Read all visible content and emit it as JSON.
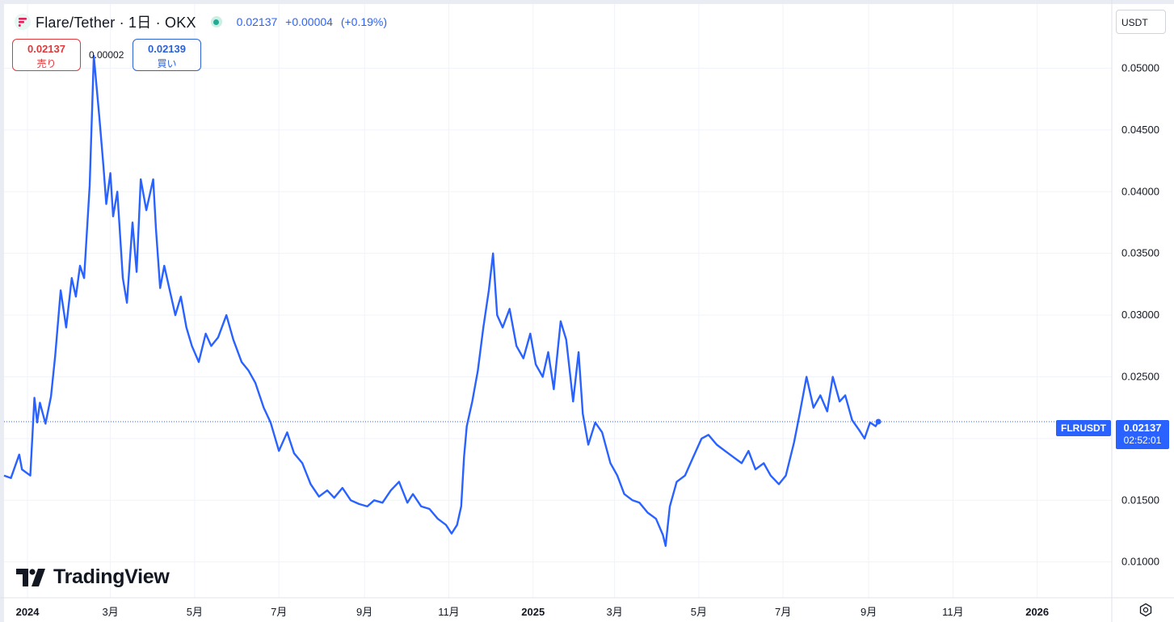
{
  "header": {
    "title": "Flare/Tether · 1日 · OKX",
    "close": "0.02137",
    "change": "+0.00004",
    "change_pct": "(+0.19%)"
  },
  "trade": {
    "sell_price": "0.02137",
    "sell_label": "売り",
    "spread": "0.00002",
    "buy_price": "0.02139",
    "buy_label": "買い"
  },
  "currency_unit": "USDT",
  "watermark": "TradingView",
  "last_price": {
    "symbol": "FLRUSDT",
    "value": "0.02137",
    "countdown": "02:52:01"
  },
  "icons": {
    "logo": "flare-logo-icon",
    "market_status": "market-open-dot-icon",
    "settings": "gear-icon",
    "watermark_logo": "tradingview-logo-icon"
  },
  "colors": {
    "line": "#2962ff",
    "grid": "#f0f3fa",
    "sell": "#e0383b",
    "buy": "#2a62d6",
    "label_bg": "#2962ff"
  },
  "chart_data": {
    "type": "line",
    "y_tick_labels": [
      "0.01000",
      "0.01500",
      "0.02000",
      "0.02500",
      "0.03000",
      "0.03500",
      "0.04000",
      "0.04500",
      "0.05000"
    ],
    "y_ticks": [
      0.01,
      0.015,
      0.02,
      0.025,
      0.03,
      0.035,
      0.04,
      0.045,
      0.05
    ],
    "ylim": [
      0.0071,
      0.0552
    ],
    "x_tick_labels": [
      "2024",
      "3月",
      "5月",
      "7月",
      "9月",
      "11月",
      "2025",
      "3月",
      "5月",
      "7月",
      "9月",
      "11月",
      "2026"
    ],
    "x_ticks": [
      "2024-01-01",
      "2024-03-01",
      "2024-05-01",
      "2024-07-01",
      "2024-09-01",
      "2024-11-01",
      "2025-01-01",
      "2025-03-01",
      "2025-05-01",
      "2025-07-01",
      "2025-09-01",
      "2025-11-01",
      "2026-01-01"
    ],
    "x_bold_ticks": [
      "2024",
      "2025",
      "2026"
    ],
    "xlim": [
      "2023-12-15",
      "2026-02-24"
    ],
    "grid": true,
    "last_value": 0.02137,
    "series": [
      {
        "x": [
          "2023-12-15",
          "2023-12-20",
          "2023-12-26",
          "2023-12-28",
          "2024-01-03",
          "2024-01-06",
          "2024-01-08",
          "2024-01-10",
          "2024-01-14",
          "2024-01-18",
          "2024-01-21",
          "2024-01-25",
          "2024-01-29",
          "2024-02-02",
          "2024-02-05",
          "2024-02-08",
          "2024-02-11",
          "2024-02-15",
          "2024-02-18",
          "2024-02-22",
          "2024-02-25",
          "2024-02-27",
          "2024-03-01",
          "2024-03-03",
          "2024-03-06",
          "2024-03-10",
          "2024-03-13",
          "2024-03-17",
          "2024-03-20",
          "2024-03-23",
          "2024-03-27",
          "2024-04-01",
          "2024-04-03",
          "2024-04-06",
          "2024-04-09",
          "2024-04-13",
          "2024-04-17",
          "2024-04-21",
          "2024-04-25",
          "2024-04-29",
          "2024-05-04",
          "2024-05-09",
          "2024-05-13",
          "2024-05-18",
          "2024-05-24",
          "2024-05-29",
          "2024-06-04",
          "2024-06-09",
          "2024-06-14",
          "2024-06-20",
          "2024-06-25",
          "2024-07-01",
          "2024-07-07",
          "2024-07-12",
          "2024-07-18",
          "2024-07-24",
          "2024-07-30",
          "2024-08-05",
          "2024-08-10",
          "2024-08-16",
          "2024-08-22",
          "2024-08-28",
          "2024-09-03",
          "2024-09-08",
          "2024-09-14",
          "2024-09-20",
          "2024-09-26",
          "2024-10-02",
          "2024-10-06",
          "2024-10-12",
          "2024-10-18",
          "2024-10-24",
          "2024-10-30",
          "2024-11-03",
          "2024-11-07",
          "2024-11-10",
          "2024-11-12",
          "2024-11-14",
          "2024-11-18",
          "2024-11-22",
          "2024-11-26",
          "2024-11-30",
          "2024-12-03",
          "2024-12-06",
          "2024-12-10",
          "2024-12-15",
          "2024-12-20",
          "2024-12-25",
          "2024-12-30",
          "2025-01-03",
          "2025-01-08",
          "2025-01-12",
          "2025-01-16",
          "2025-01-21",
          "2025-01-25",
          "2025-01-30",
          "2025-02-03",
          "2025-02-06",
          "2025-02-10",
          "2025-02-15",
          "2025-02-20",
          "2025-02-26",
          "2025-03-03",
          "2025-03-08",
          "2025-03-14",
          "2025-03-19",
          "2025-03-25",
          "2025-03-31",
          "2025-04-05",
          "2025-04-07",
          "2025-04-10",
          "2025-04-15",
          "2025-04-21",
          "2025-04-27",
          "2025-05-03",
          "2025-05-08",
          "2025-05-14",
          "2025-05-20",
          "2025-05-26",
          "2025-06-01",
          "2025-06-06",
          "2025-06-11",
          "2025-06-17",
          "2025-06-22",
          "2025-06-28",
          "2025-07-03",
          "2025-07-09",
          "2025-07-13",
          "2025-07-18",
          "2025-07-23",
          "2025-07-28",
          "2025-08-02",
          "2025-08-06",
          "2025-08-11",
          "2025-08-15",
          "2025-08-20",
          "2025-08-25",
          "2025-08-29",
          "2025-09-02",
          "2025-09-06",
          "2025-09-08"
        ],
        "y": [
          0.017,
          0.0168,
          0.0187,
          0.0175,
          0.017,
          0.0233,
          0.0213,
          0.0229,
          0.0212,
          0.0234,
          0.0267,
          0.032,
          0.029,
          0.033,
          0.0315,
          0.034,
          0.033,
          0.0405,
          0.051,
          0.046,
          0.042,
          0.039,
          0.0415,
          0.038,
          0.04,
          0.033,
          0.031,
          0.0375,
          0.0335,
          0.041,
          0.0385,
          0.041,
          0.037,
          0.0322,
          0.034,
          0.032,
          0.03,
          0.0315,
          0.029,
          0.0275,
          0.0262,
          0.0285,
          0.0275,
          0.0282,
          0.03,
          0.028,
          0.0262,
          0.0255,
          0.0245,
          0.0225,
          0.0213,
          0.019,
          0.0205,
          0.0188,
          0.018,
          0.0163,
          0.0153,
          0.0158,
          0.0152,
          0.016,
          0.015,
          0.0147,
          0.0145,
          0.015,
          0.0148,
          0.0158,
          0.0165,
          0.0148,
          0.0155,
          0.0145,
          0.0143,
          0.0135,
          0.013,
          0.0123,
          0.013,
          0.0145,
          0.0185,
          0.021,
          0.023,
          0.0255,
          0.029,
          0.032,
          0.035,
          0.03,
          0.029,
          0.0305,
          0.0275,
          0.0265,
          0.0285,
          0.026,
          0.025,
          0.027,
          0.024,
          0.0295,
          0.028,
          0.023,
          0.027,
          0.022,
          0.0195,
          0.0213,
          0.0205,
          0.018,
          0.017,
          0.0155,
          0.015,
          0.0148,
          0.014,
          0.0135,
          0.0122,
          0.0113,
          0.0145,
          0.0165,
          0.017,
          0.0185,
          0.02,
          0.0203,
          0.0195,
          0.019,
          0.0185,
          0.018,
          0.019,
          0.0175,
          0.018,
          0.017,
          0.0163,
          0.017,
          0.0197,
          0.022,
          0.025,
          0.0225,
          0.0235,
          0.0222,
          0.025,
          0.023,
          0.0235,
          0.0215,
          0.0207,
          0.02,
          0.0213,
          0.021,
          0.02137
        ]
      }
    ]
  }
}
